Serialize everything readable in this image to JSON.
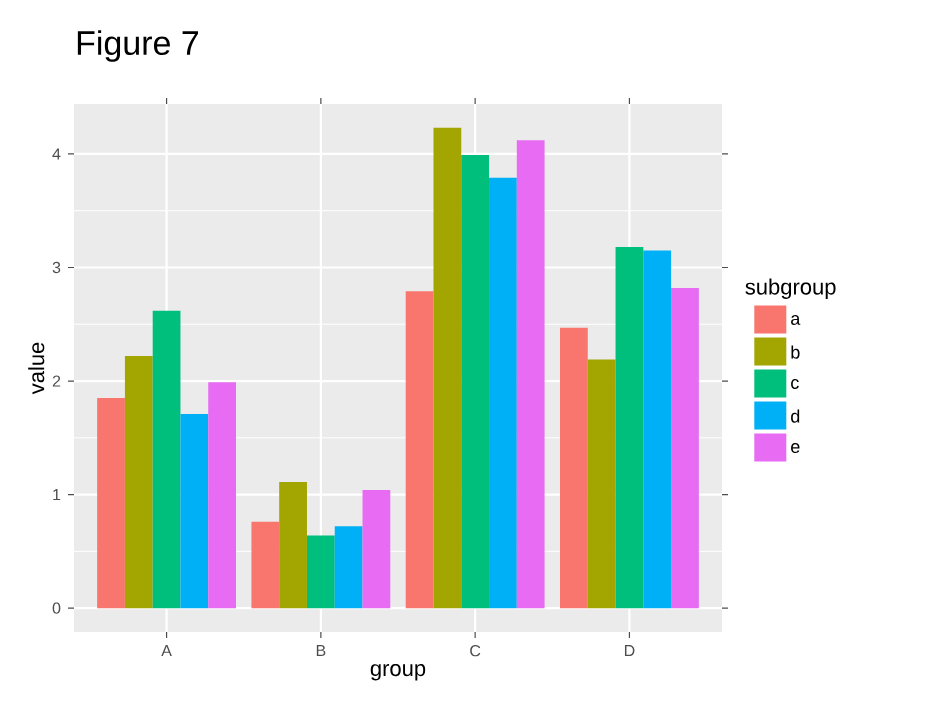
{
  "chart_data": {
    "type": "bar",
    "title": "Figure 7",
    "xlabel": "group",
    "ylabel": "value",
    "legend_title": "subgroup",
    "categories": [
      "A",
      "B",
      "C",
      "D"
    ],
    "series": [
      {
        "name": "a",
        "color": "#f8766d",
        "values": [
          1.85,
          0.76,
          2.79,
          2.47
        ]
      },
      {
        "name": "b",
        "color": "#a3a500",
        "values": [
          2.22,
          1.11,
          4.23,
          2.19
        ]
      },
      {
        "name": "c",
        "color": "#00bf7d",
        "values": [
          2.62,
          0.64,
          3.99,
          3.18
        ]
      },
      {
        "name": "d",
        "color": "#00b0f6",
        "values": [
          1.71,
          0.72,
          3.79,
          3.15
        ]
      },
      {
        "name": "e",
        "color": "#e76bf3",
        "values": [
          1.99,
          1.04,
          4.12,
          2.82
        ]
      }
    ],
    "ylim": [
      -0.21,
      4.44
    ],
    "yticks": [
      0,
      1,
      2,
      3,
      4
    ],
    "grid": true,
    "legend": "right"
  }
}
